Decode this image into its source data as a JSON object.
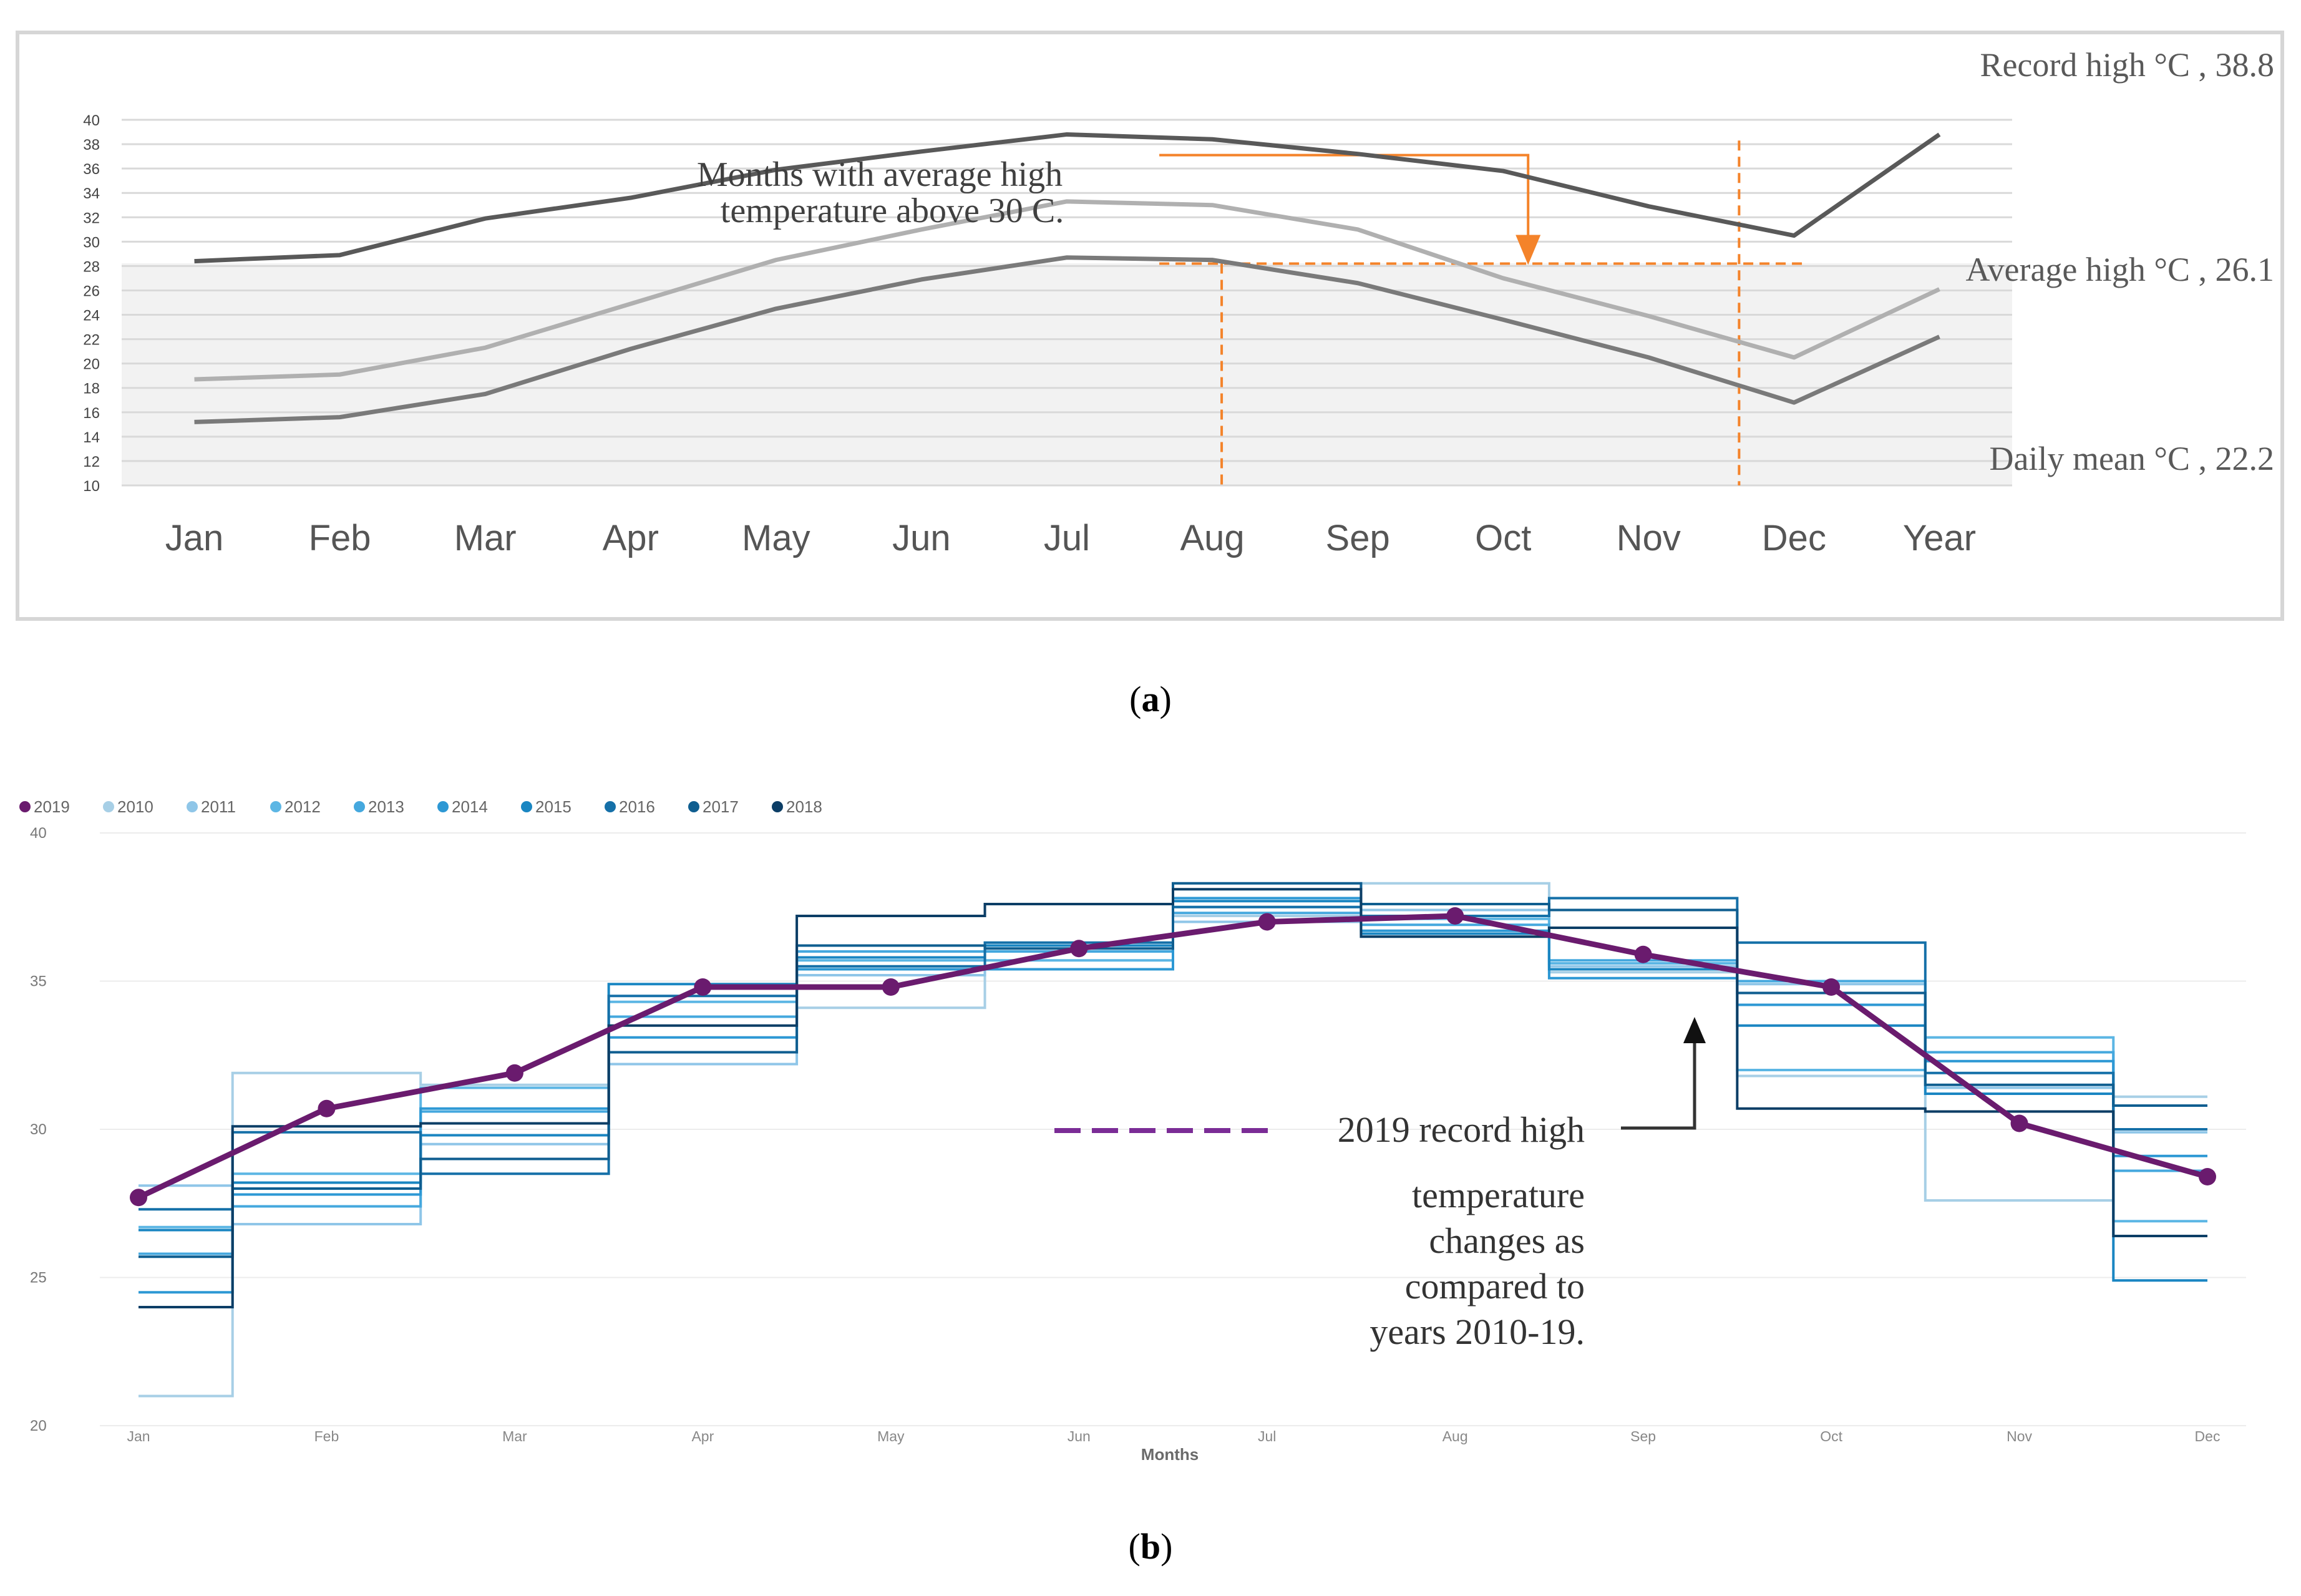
{
  "chart_data": [
    {
      "type": "line",
      "panel_label": "(a)",
      "panel_letter": "a",
      "categories": [
        "Jan",
        "Feb",
        "Mar",
        "Apr",
        "May",
        "Jun",
        "Jul",
        "Aug",
        "Sep",
        "Oct",
        "Nov",
        "Dec",
        "Year"
      ],
      "ylim": [
        10,
        40
      ],
      "yticks": [
        10,
        12,
        14,
        16,
        18,
        20,
        22,
        24,
        26,
        28,
        30,
        32,
        34,
        36,
        38,
        40
      ],
      "grid": true,
      "series": [
        {
          "name": "Record high °C",
          "label": "Record high °C , 38.8",
          "color": "#595959",
          "values": [
            28.4,
            28.9,
            31.9,
            33.6,
            35.9,
            37.4,
            38.8,
            38.4,
            37.2,
            35.8,
            32.9,
            30.5,
            38.8
          ]
        },
        {
          "name": "Average high °C",
          "label": "Average high °C , 26.1",
          "color": "#b0b0b0",
          "values": [
            18.7,
            19.1,
            21.3,
            24.9,
            28.5,
            31.0,
            33.3,
            33.0,
            31.0,
            27.0,
            23.9,
            20.5,
            26.1
          ]
        },
        {
          "name": "Daily mean °C",
          "label": "Daily mean °C , 22.2",
          "color": "#7a7a7a",
          "values": [
            15.2,
            15.6,
            17.5,
            21.2,
            24.5,
            26.9,
            28.7,
            28.5,
            26.6,
            23.6,
            20.5,
            16.8,
            22.2
          ]
        }
      ],
      "annotations": {
        "line1": "Months with average high",
        "line2": "temperature above 30 C.",
        "marker_color": "#f4832a",
        "threshold_value": 28.2,
        "bracket_top_value": 37.1,
        "bracket_months": [
          "Aug",
          "Dec"
        ]
      }
    },
    {
      "type": "line",
      "panel_label": "(b)",
      "panel_letter": "b",
      "categories": [
        "Jan",
        "Feb",
        "Mar",
        "Apr",
        "May",
        "Jun",
        "Jul",
        "Aug",
        "Sep",
        "Oct",
        "Nov",
        "Dec"
      ],
      "xlabel": "Months",
      "ylim": [
        20,
        40
      ],
      "yticks": [
        20,
        25,
        30,
        35,
        40
      ],
      "legend": [
        "2019",
        "2010",
        "2011",
        "2012",
        "2013",
        "2014",
        "2015",
        "2016",
        "2017",
        "2018"
      ],
      "legend_position": "top-left",
      "series": [
        {
          "name": "2019",
          "color": "#6a1b6e",
          "values": [
            27.7,
            30.7,
            31.9,
            34.8,
            34.8,
            36.1,
            37.0,
            37.2,
            35.9,
            34.8,
            30.2,
            28.4
          ]
        },
        {
          "name": "2010",
          "color": "#a7cfe6",
          "values": [
            21.0,
            31.9,
            31.5,
            32.6,
            34.1,
            35.4,
            37.2,
            38.3,
            35.3,
            31.8,
            27.6,
            31.1
          ]
        },
        {
          "name": "2011",
          "color": "#8fc6e8",
          "values": [
            28.1,
            26.8,
            29.5,
            32.2,
            35.2,
            36.2,
            37.0,
            37.4,
            35.5,
            34.9,
            31.4,
            29.9
          ]
        },
        {
          "name": "2012",
          "color": "#5cb6e4",
          "values": [
            26.7,
            28.5,
            31.4,
            34.3,
            35.7,
            35.7,
            37.5,
            37.1,
            35.6,
            32.0,
            33.1,
            26.9
          ]
        },
        {
          "name": "2013",
          "color": "#45a8de",
          "values": [
            25.8,
            27.4,
            30.6,
            33.8,
            36.0,
            36.0,
            37.3,
            36.9,
            35.7,
            35.0,
            32.6,
            28.6
          ]
        },
        {
          "name": "2014",
          "color": "#2d98d4",
          "values": [
            24.5,
            27.8,
            30.7,
            33.1,
            35.4,
            35.4,
            37.8,
            36.7,
            35.1,
            34.2,
            32.3,
            29.1
          ]
        },
        {
          "name": "2015",
          "color": "#1a86c2",
          "values": [
            26.6,
            28.2,
            29.8,
            34.9,
            35.8,
            36.2,
            37.7,
            36.6,
            35.4,
            33.5,
            31.2,
            24.9
          ]
        },
        {
          "name": "2016",
          "color": "#1570a8",
          "values": [
            27.3,
            29.9,
            28.5,
            34.5,
            35.5,
            36.3,
            37.5,
            37.2,
            37.8,
            36.3,
            31.9,
            30.0
          ]
        },
        {
          "name": "2017",
          "color": "#0f5e90",
          "values": [
            25.7,
            28.0,
            29.0,
            32.6,
            36.2,
            36.1,
            38.3,
            37.6,
            37.4,
            34.6,
            31.5,
            30.8
          ]
        },
        {
          "name": "2018",
          "color": "#0c3e66",
          "values": [
            24.0,
            30.1,
            30.2,
            33.5,
            37.2,
            37.6,
            38.1,
            36.5,
            36.8,
            30.7,
            30.6,
            26.4
          ]
        }
      ],
      "annotation": {
        "legend_sample": "2019 record high",
        "lines": [
          "temperature",
          "changes as",
          "compared to",
          "years 2010-19."
        ]
      }
    }
  ]
}
